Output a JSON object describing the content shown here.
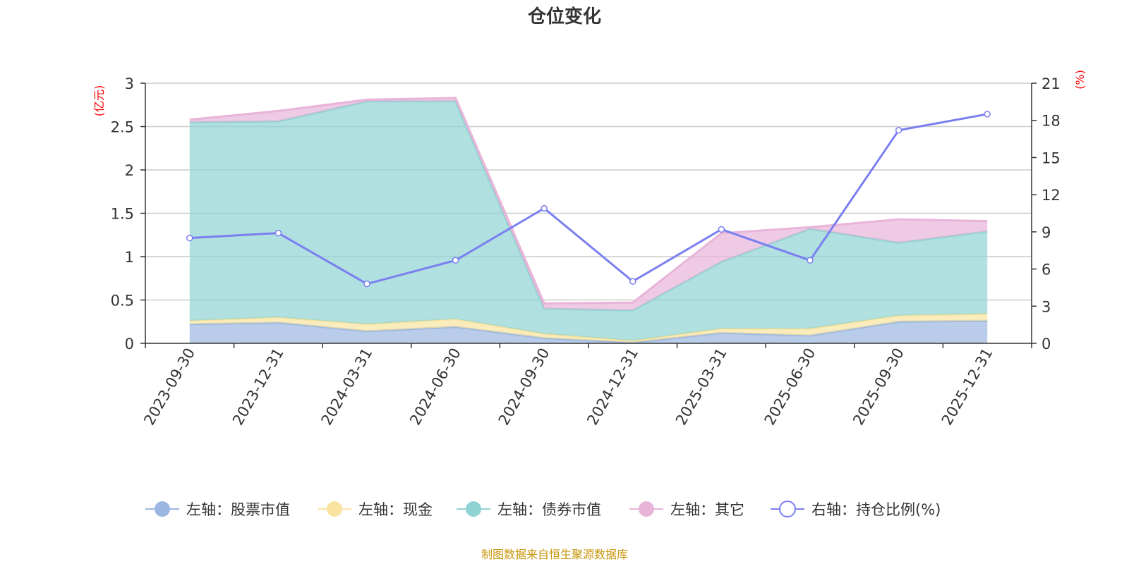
{
  "chart_data": {
    "type": "area",
    "title": "仓位变化",
    "categories": [
      "2023-09-30",
      "2023-12-31",
      "2024-03-31",
      "2024-06-30",
      "2024-09-30",
      "2024-12-31",
      "2025-03-31",
      "2025-06-30",
      "2025-09-30",
      "2025-12-31"
    ],
    "left_axis": {
      "unit": "(亿元)",
      "ylim": [
        0,
        3
      ],
      "ticks": [
        "0",
        "0.5",
        "1",
        "1.5",
        "2",
        "2.5",
        "3"
      ]
    },
    "right_axis": {
      "unit": "(%)",
      "ylim": [
        0,
        21
      ],
      "ticks": [
        "0",
        "3",
        "6",
        "9",
        "12",
        "15",
        "18",
        "21"
      ]
    },
    "series": [
      {
        "name": "左轴：股票市值",
        "axis": "left",
        "stacked": true,
        "color": "#9bb6e0",
        "values": [
          0.22,
          0.24,
          0.14,
          0.19,
          0.06,
          0.01,
          0.12,
          0.09,
          0.25,
          0.26
        ]
      },
      {
        "name": "左轴：现金",
        "axis": "left",
        "stacked": true,
        "color": "#f9e49f",
        "values": [
          0.04,
          0.06,
          0.08,
          0.09,
          0.05,
          0.02,
          0.05,
          0.08,
          0.07,
          0.08
        ]
      },
      {
        "name": "左轴：债券市值",
        "axis": "left",
        "stacked": true,
        "color": "#8fd3d3",
        "values": [
          2.29,
          2.26,
          2.57,
          2.51,
          0.29,
          0.35,
          0.77,
          1.15,
          0.84,
          0.95
        ]
      },
      {
        "name": "左轴：其它",
        "axis": "left",
        "stacked": true,
        "color": "#e8b4d8",
        "values": [
          0.03,
          0.12,
          0.02,
          0.04,
          0.06,
          0.09,
          0.33,
          0.02,
          0.27,
          0.12
        ]
      },
      {
        "name": "右轴：持仓比例(%)",
        "axis": "right",
        "type": "line",
        "color": "#7b7ff0",
        "values": [
          8.5,
          8.9,
          4.8,
          6.7,
          10.9,
          5.0,
          9.2,
          6.7,
          17.2,
          18.5
        ]
      }
    ],
    "legend_position": "bottom",
    "grid": true
  },
  "source_note": "制图数据来自恒生聚源数据库"
}
